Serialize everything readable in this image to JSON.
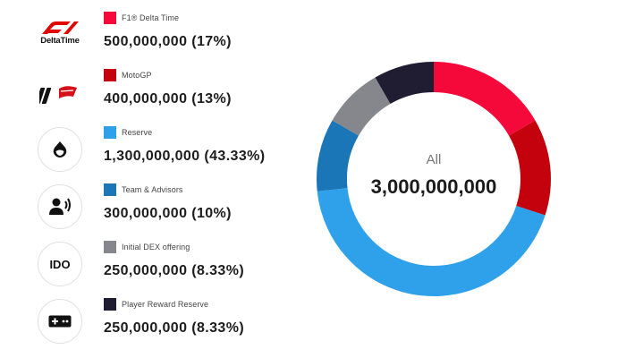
{
  "legend": [
    {
      "label": "F1® Delta Time",
      "value": "500,000,000 (17%)",
      "icon": "f1-delta-time-logo",
      "color": "#f5083a"
    },
    {
      "label": "MotoGP",
      "value": "400,000,000 (13%)",
      "icon": "motogp-logo",
      "color": "#c4020d"
    },
    {
      "label": "Reserve",
      "value": "1,300,000,000 (43.33%)",
      "icon": "drop-icon",
      "color": "#2ea1ea"
    },
    {
      "label": "Team & Advisors",
      "value": "300,000,000 (10%)",
      "icon": "user-speaking-icon",
      "color": "#1a76b6"
    },
    {
      "label": "Initial DEX offering",
      "value": "250,000,000 (8.33%)",
      "icon": "ido-icon",
      "color": "#86868d"
    },
    {
      "label": "Player Reward Reserve",
      "value": "250,000,000 (8.33%)",
      "icon": "gamepad-icon",
      "color": "#201d33"
    }
  ],
  "logos": {
    "f1_wordmark": "DeltaTime",
    "ido": "IDO"
  },
  "center": {
    "title": "All",
    "total": "3,000,000,000"
  },
  "chart_data": {
    "type": "pie",
    "donut": true,
    "categories": [
      "F1® Delta Time",
      "MotoGP",
      "Reserve",
      "Team & Advisors",
      "Initial DEX offering",
      "Player Reward Reserve"
    ],
    "values": [
      500000000,
      400000000,
      1300000000,
      300000000,
      250000000,
      250000000
    ],
    "percent_labels": [
      "17%",
      "13%",
      "43.33%",
      "10%",
      "8.33%",
      "8.33%"
    ],
    "colors": [
      "#f5083a",
      "#c4020d",
      "#2ea1ea",
      "#1a76b6",
      "#86868d",
      "#201d33"
    ],
    "start_angle": "top",
    "direction": "clockwise",
    "legend_position": "left"
  }
}
